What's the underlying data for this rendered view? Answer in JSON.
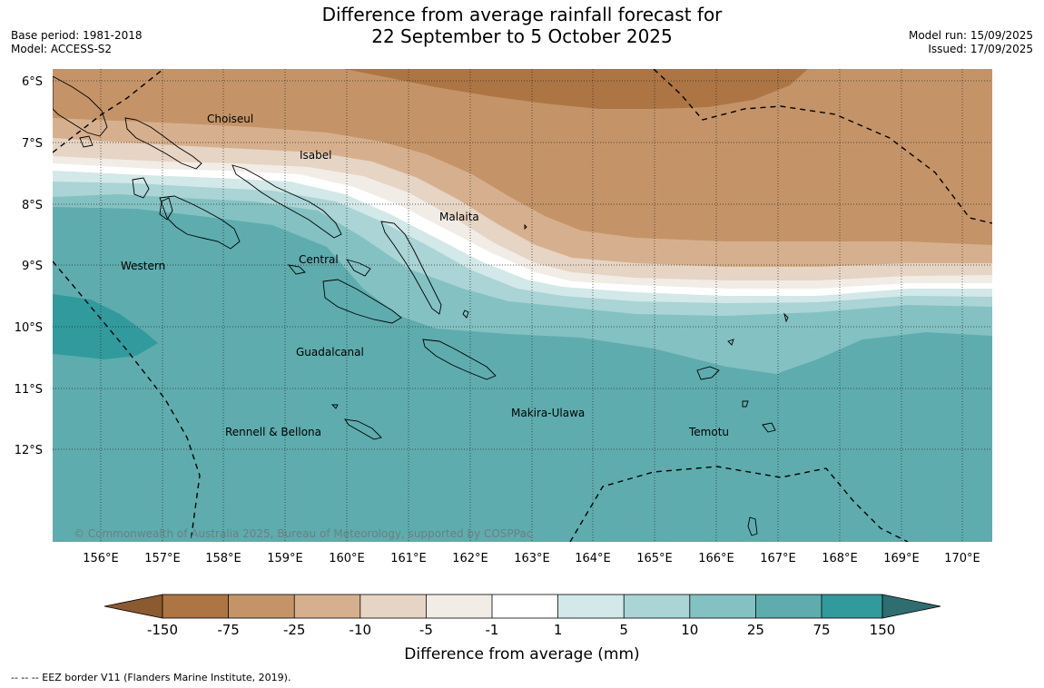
{
  "title": {
    "line1": "Difference from average rainfall forecast for",
    "line2": "22 September to 5 October 2025"
  },
  "meta": {
    "base_period": "Base period: 1981-2018",
    "model": "Model: ACCESS-S2",
    "model_run": "Model run: 15/09/2025",
    "issued": "Issued: 17/09/2025"
  },
  "map": {
    "copyright": "© Commonwealth of Australia 2025, Bureau of Meteorology, supported by COSPPac",
    "lat_labels": [
      "6°S",
      "7°S",
      "8°S",
      "9°S",
      "10°S",
      "11°S",
      "12°S"
    ],
    "lon_labels": [
      "156°E",
      "157°E",
      "158°E",
      "159°E",
      "160°E",
      "161°E",
      "162°E",
      "163°E",
      "164°E",
      "165°E",
      "166°E",
      "167°E",
      "168°E",
      "169°E",
      "170°E"
    ],
    "provinces": [
      "Choiseul",
      "Isabel",
      "Malaita",
      "Western",
      "Central",
      "Guadalcanal",
      "Makira-Ulawa",
      "Rennell & Bellona",
      "Temotu"
    ]
  },
  "colorbar": {
    "ticks": [
      "-150",
      "-75",
      "-25",
      "-10",
      "-5",
      "-1",
      "1",
      "5",
      "10",
      "25",
      "75",
      "150"
    ],
    "colors": [
      "#8b5a2e",
      "#ad7543",
      "#c49468",
      "#d6b08e",
      "#e6d4c4",
      "#f2ece6",
      "#ffffff",
      "#d3e8e8",
      "#aad4d5",
      "#84c1c2",
      "#5eacae",
      "#319a9c",
      "#2e6e70"
    ],
    "label": "Difference from average (mm)"
  },
  "footer": "--  --  -- EEZ border V11 (Flanders Marine Institute, 2019)."
}
